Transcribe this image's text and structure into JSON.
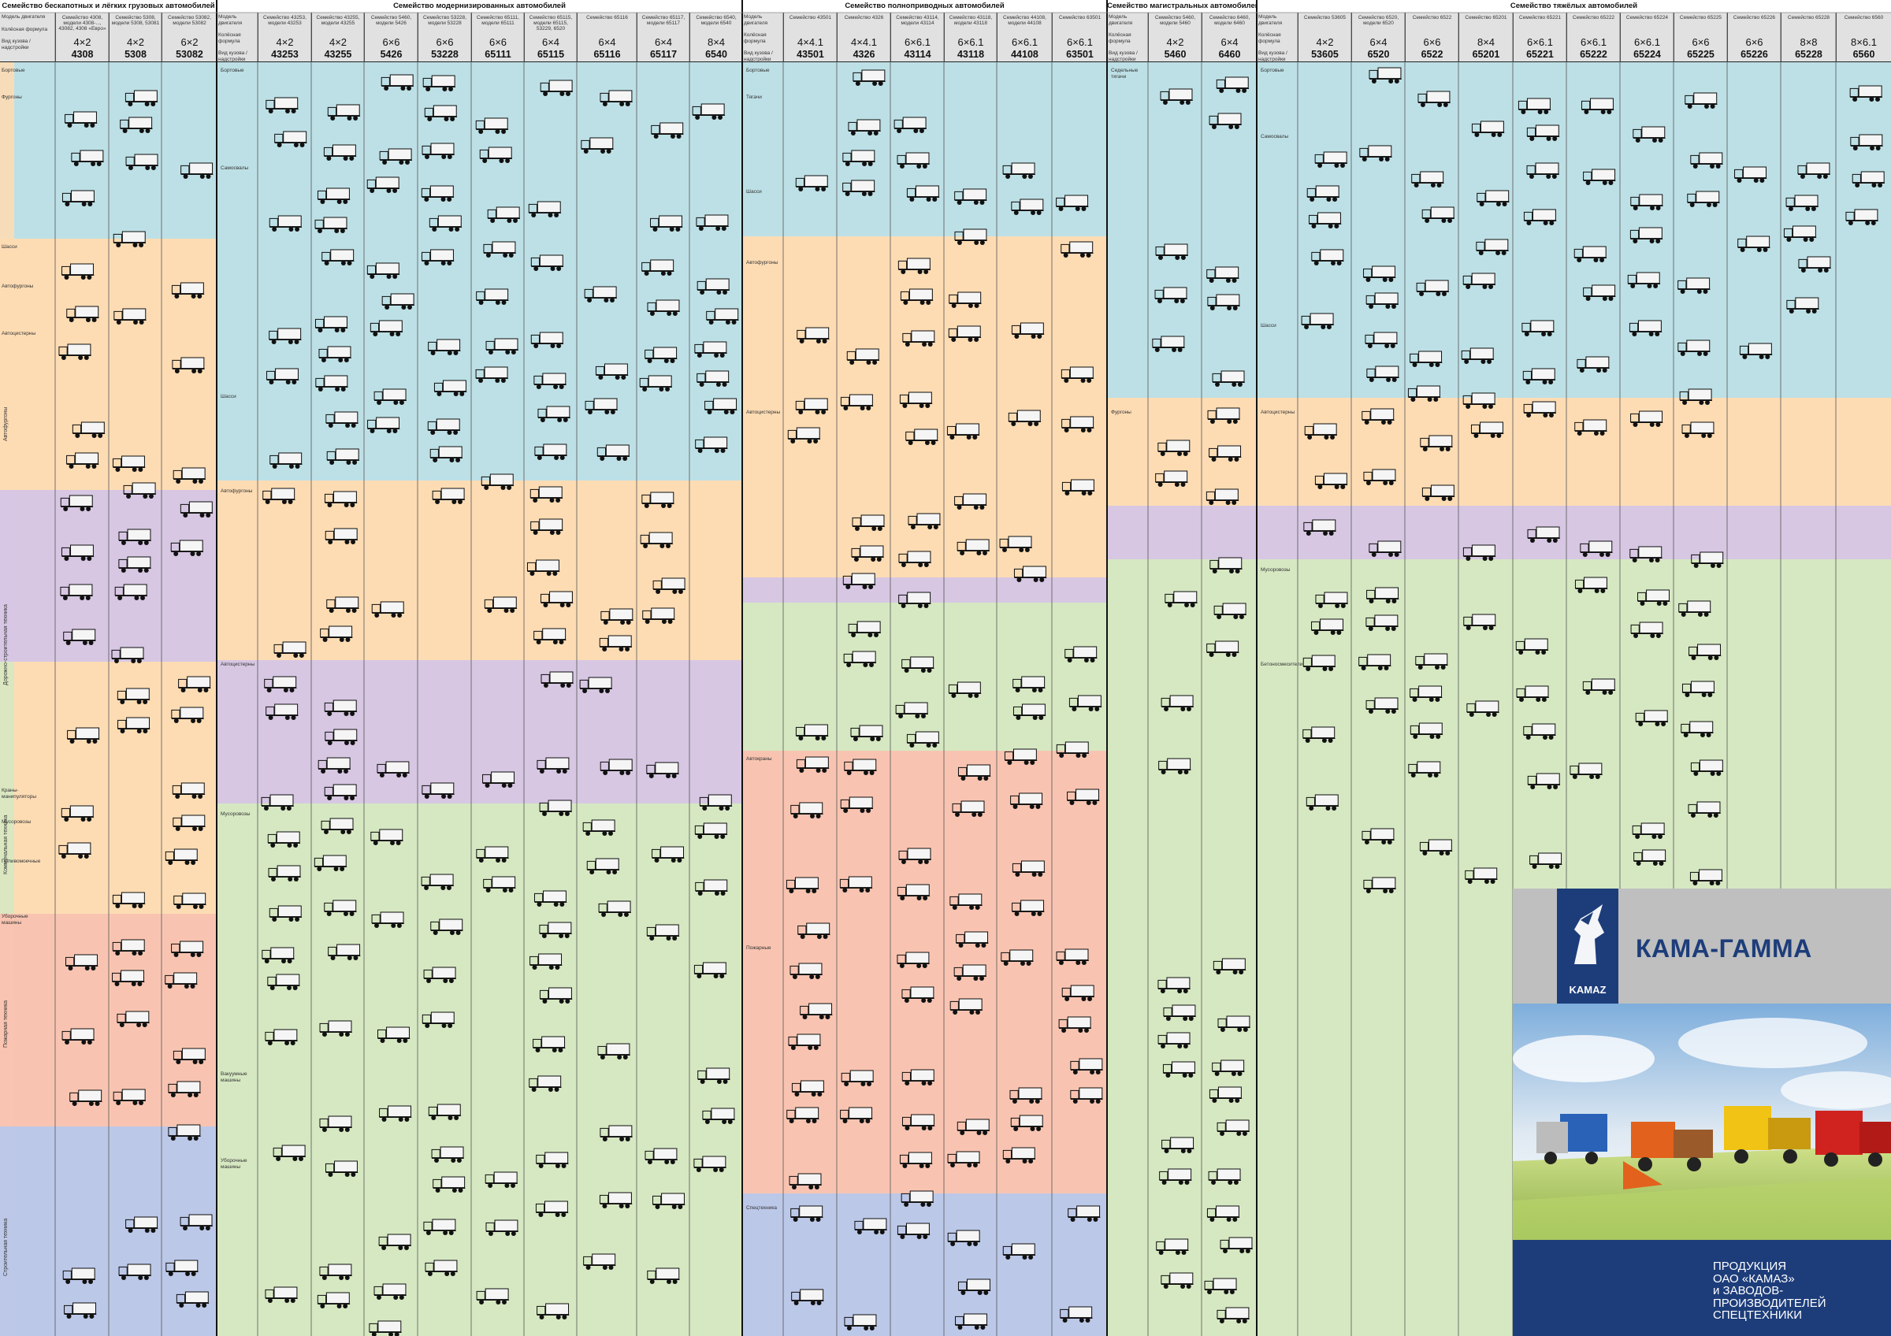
{
  "sections": [
    {
      "title": "Семейство бескапотных и лёгких грузовых автомобилей",
      "wheel": [
        "4×2",
        "4×2",
        "6×2"
      ],
      "codes": [
        "4308",
        "5308",
        "53082"
      ],
      "models": [
        "Семейство 4308, модели 4308-..., 43082, 4308 «Евро»",
        "Семейство 5308, модели 5308, 53081",
        "Семейство 53082, модели 53082"
      ]
    },
    {
      "title": "Семейство модернизированных автомобилей",
      "wheel": [
        "4×2",
        "4×2",
        "6×6",
        "6×6",
        "6×6",
        "6×4",
        "6×4",
        "6×4",
        "8×4"
      ],
      "codes": [
        "43253",
        "43255",
        "5426",
        "53228",
        "65111",
        "65115",
        "65116",
        "65117",
        "6540"
      ],
      "models": [
        "Семейство 43253, модели 43253",
        "Семейство 43255, модели 43255",
        "Семейство 5460, модели 5426",
        "Семейство 53228, модели 53228",
        "Семейство 65111, модели 65111",
        "Семейство 65115, модели 65115, 53229, 6520",
        "Семейство 65116",
        "Семейство 65117, модели 65117",
        "Семейство 6540, модели 6540"
      ]
    },
    {
      "title": "Семейство полноприводных автомобилей",
      "wheel": [
        "4×4.1",
        "4×4.1",
        "6×6.1",
        "6×6.1",
        "6×6.1",
        "6×6.1"
      ],
      "codes": [
        "43501",
        "4326",
        "43114",
        "43118",
        "44108",
        "63501"
      ],
      "models": [
        "Семейство 43501",
        "Семейство 4326",
        "Семейство 43114, модели 43114",
        "Семейство 43118, модели 43118",
        "Семейство 44108, модели 44108",
        "Семейство 63501"
      ]
    },
    {
      "title": "Семейство магистральных автомобилей",
      "wheel": [
        "4×2",
        "6×4"
      ],
      "codes": [
        "5460",
        "6460"
      ],
      "models": [
        "Семейство 5460, модели 5460",
        "Семейство 6460, модели 6460"
      ]
    },
    {
      "title": "Семейство тяжёлых автомобилей",
      "wheel": [
        "4×2",
        "6×4",
        "6×6",
        "8×4",
        "6×6.1",
        "6×6.1",
        "6×6.1",
        "6×6",
        "6×6",
        "8×8",
        "8×6.1"
      ],
      "codes": [
        "53605",
        "6520",
        "6522",
        "65201",
        "65221",
        "65222",
        "65224",
        "65225",
        "65226",
        "65228",
        "6560"
      ],
      "models": [
        "Семейство 53605",
        "Семейство 6520, модели 6520",
        "Семейство 6522",
        "Семейство 65201",
        "Семейство 65221",
        "Семейство 65222",
        "Семейство 65224",
        "Семейство 65225",
        "Семейство 65226",
        "Семейство 65228",
        "Семейство 6560"
      ]
    }
  ],
  "header_labels": {
    "model": "Модель двигателя",
    "wheel_formula": "Колёсная формула",
    "body": "Вид кузова / надстройки"
  },
  "row_labels": {
    "s1": [
      "Бортовые",
      "Фургоны",
      "Шасси",
      "Автофургоны",
      "Автоцистерны",
      "Краны-манипуляторы",
      "Мусоровозы",
      "Поливомоечные",
      "Уборочные машины"
    ],
    "s2": [
      "Бортовые",
      "Самосвалы",
      "Шасси",
      "Автофургоны",
      "Автоцистерны",
      "Мусоровозы",
      "Вакуумные машины",
      "Уборочные машины"
    ],
    "s3": [
      "Бортовые",
      "Тягачи",
      "Шасси",
      "Автофургоны",
      "Автоцистерны",
      "Автокраны",
      "Пожарные",
      "Спецтехника"
    ],
    "s4": [
      "Седельные тягачи",
      "Фургоны"
    ],
    "s5": [
      "Бортовые",
      "Самосвалы",
      "Шасси",
      "Автоцистерны",
      "Мусоровозы",
      "Бетоносмесители"
    ]
  },
  "group_labels": [
    "Автофургоны",
    "Дорожно-строительная техника",
    "Коммунальная техника",
    "Пожарная техника",
    "Строительная техника"
  ],
  "brand": {
    "name": "КАМА-ГАММА",
    "logo": "KAMAZ",
    "tagline": [
      "ПРОДУКЦИЯ",
      "ОАО «КАМАЗ»",
      "и ЗАВОДОВ-",
      "ПРОИЗВОДИТЕЛЕЙ",
      "СПЕЦТЕХНИКИ"
    ]
  },
  "colors": {
    "blue": "#bde0e6",
    "orange": "#fddcb4",
    "purple": "#d7c7e3",
    "green": "#d6e8c2",
    "red": "#f8c4b1",
    "lavender": "#bcc8e8",
    "header": "#e1e1e1",
    "navy": "#1d3d7a"
  }
}
